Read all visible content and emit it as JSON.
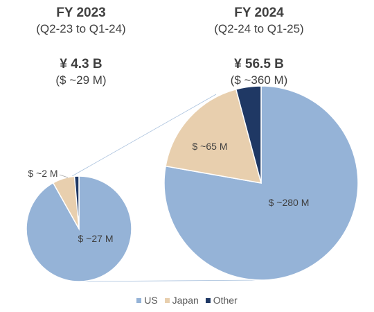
{
  "chart_data": [
    {
      "type": "pie",
      "title": "FY 2023",
      "subtitle": "(Q2-23 to Q1-24)",
      "total_label": "¥ 4.3 B",
      "total_usd_label": "($ ~29 M)",
      "categories": [
        "US",
        "Japan",
        "Other"
      ],
      "values": [
        27,
        2,
        0.4
      ],
      "data_labels": [
        "$ ~27 M",
        "$ ~2 M",
        ""
      ]
    },
    {
      "type": "pie",
      "title": "FY 2024",
      "subtitle": "(Q2-24 to Q1-25)",
      "total_label": "¥ 56.5 B",
      "total_usd_label": "($ ~360 M)",
      "categories": [
        "US",
        "Japan",
        "Other"
      ],
      "values": [
        280,
        65,
        15
      ],
      "data_labels": [
        "$ ~280 M",
        "$ ~65 M",
        ""
      ]
    }
  ],
  "legend": [
    {
      "label": "US",
      "color": "#95b3d7"
    },
    {
      "label": "Japan",
      "color": "#e8cfae"
    },
    {
      "label": "Other",
      "color": "#1f3864"
    }
  ]
}
